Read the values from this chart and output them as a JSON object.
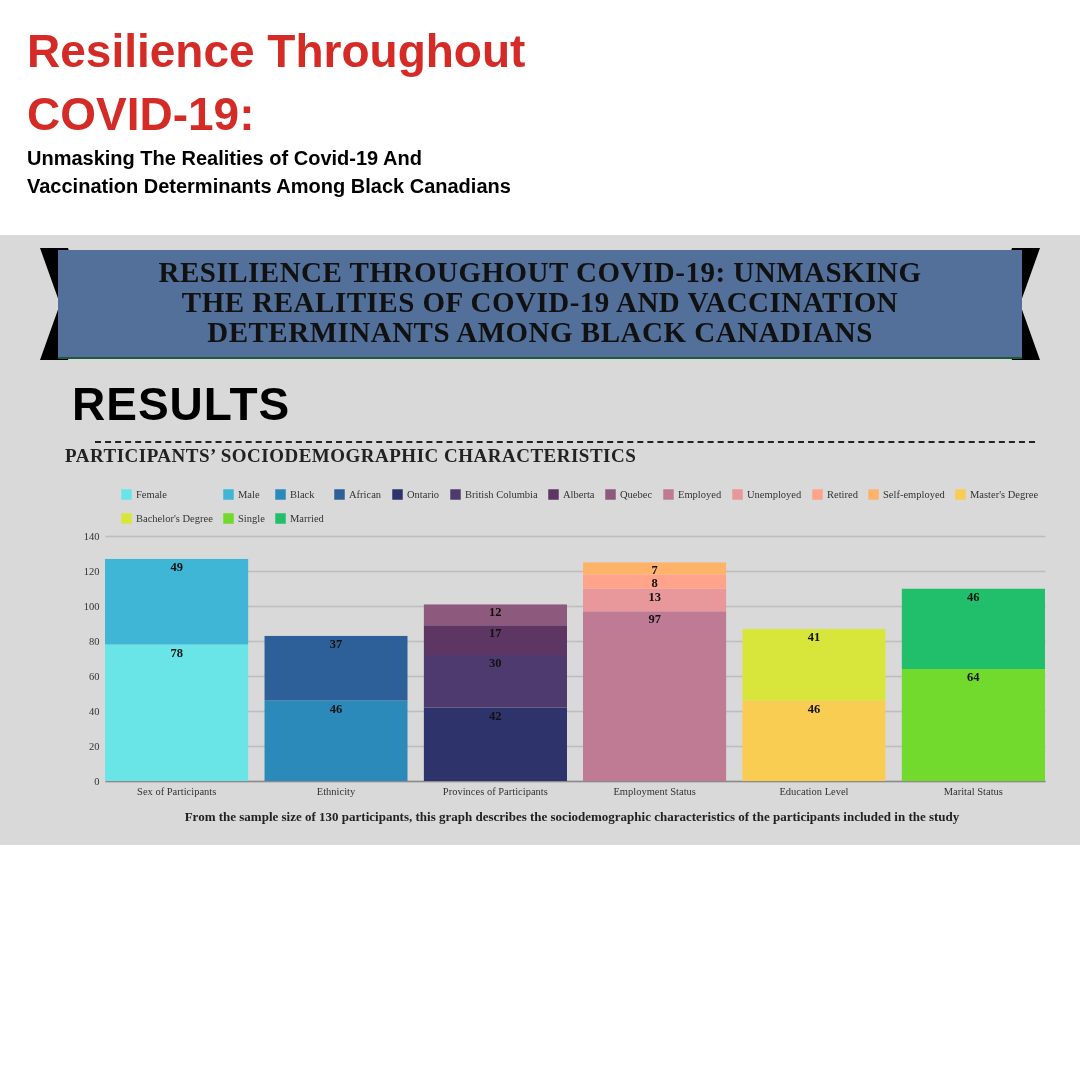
{
  "chart_data": {
    "type": "bar",
    "title": "Resilience Throughout COVID-19:",
    "subtitle": "Unmasking The Realities of Covid-19 And Vaccination Determinants Among Black Canadians",
    "annotations": [
      "RESILIENCE THROUGHOUT COVID-19: UNMASKING THE REALITIES OF COVID-19 AND VACCINATION DETERMINANTS AMONG BLACK CANADIANS",
      "RESULTS",
      "PARTICIPANTS’ SOCIODEMOGRAPHIC CHARACTERISTICS",
      "From the sample size of 130 participants, this graph describes the sociodemographic characteristics of the participants included in the study"
    ],
    "categories": [
      "Sex of Participants",
      "Ethnicity",
      "Provinces of Participants",
      "Employment Status",
      "Education Level",
      "Marital Status"
    ],
    "series": [
      {
        "name": "Female",
        "color": "#6ae5e7",
        "values": [
          78,
          null,
          null,
          null,
          null,
          null
        ]
      },
      {
        "name": "Male",
        "color": "#40b6d6",
        "values": [
          49,
          null,
          null,
          null,
          null,
          null
        ]
      },
      {
        "name": "Black",
        "color": "#2b8aba",
        "values": [
          null,
          46,
          null,
          null,
          null,
          null
        ]
      },
      {
        "name": "African",
        "color": "#2d5f98",
        "values": [
          null,
          37,
          null,
          null,
          null,
          null
        ]
      },
      {
        "name": "Ontario",
        "color": "#2e336c",
        "values": [
          null,
          null,
          42,
          null,
          null,
          null
        ]
      },
      {
        "name": "British Columbia",
        "color": "#4f3a70",
        "values": [
          null,
          null,
          30,
          null,
          null,
          null
        ]
      },
      {
        "name": "Alberta",
        "color": "#5d3663",
        "values": [
          null,
          null,
          17,
          null,
          null,
          null
        ]
      },
      {
        "name": "Quebec",
        "color": "#8d5a7d",
        "values": [
          null,
          null,
          12,
          null,
          null,
          null
        ]
      },
      {
        "name": "Employed",
        "color": "#be7b93",
        "values": [
          null,
          null,
          null,
          97,
          null,
          null
        ]
      },
      {
        "name": "Unemployed",
        "color": "#e8979b",
        "values": [
          null,
          null,
          null,
          13,
          null,
          null
        ]
      },
      {
        "name": "Retired",
        "color": "#ffa38a",
        "values": [
          null,
          null,
          null,
          8,
          null,
          null
        ]
      },
      {
        "name": "Self-employed",
        "color": "#ffb36a",
        "values": [
          null,
          null,
          null,
          7,
          null,
          null
        ]
      },
      {
        "name": "Master's Degree",
        "color": "#f9cd52",
        "values": [
          null,
          null,
          null,
          null,
          46,
          null
        ]
      },
      {
        "name": "Bachelor's Degree",
        "color": "#d8e63c",
        "values": [
          null,
          null,
          null,
          null,
          41,
          null
        ]
      },
      {
        "name": "Single",
        "color": "#72d92d",
        "values": [
          null,
          null,
          null,
          null,
          null,
          64
        ]
      },
      {
        "name": "Married",
        "color": "#21bf6b",
        "values": [
          null,
          null,
          null,
          null,
          null,
          46
        ]
      }
    ],
    "stacked": true,
    "data_labels": true,
    "ylim": [
      0,
      140
    ],
    "yticks": [
      0,
      20,
      40,
      60,
      80,
      100,
      120,
      140
    ],
    "grid": "y",
    "legend": "top"
  }
}
